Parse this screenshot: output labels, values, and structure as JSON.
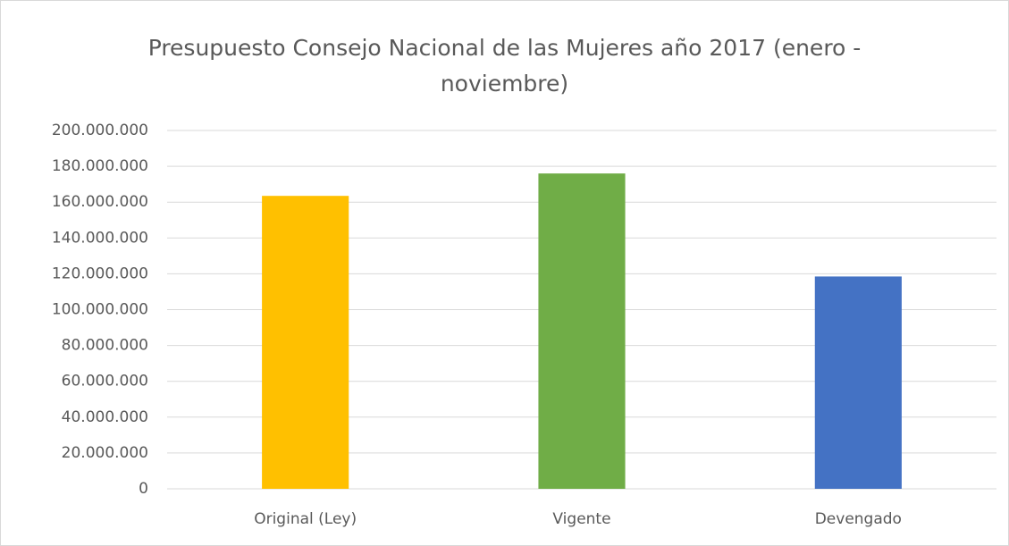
{
  "chart_data": {
    "type": "bar",
    "title": "Presupuesto Consejo Nacional de las Mujeres año 2017 (enero - noviembre)",
    "categories": [
      "Original (Ley)",
      "Vigente",
      "Devengado"
    ],
    "values": [
      163500000,
      176000000,
      118500000
    ],
    "colors": [
      "#ffc000",
      "#70ad47",
      "#4472c4"
    ],
    "ylim": [
      0,
      200000000
    ],
    "yticks": [
      0,
      {
        "value": 20000000,
        "label": "20.000.000"
      },
      {
        "value": 40000000,
        "label": "40.000.000"
      },
      {
        "value": 60000000,
        "label": "60.000.000"
      },
      {
        "value": 80000000,
        "label": "80.000.000"
      },
      {
        "value": 100000000,
        "label": "100.000.000"
      },
      {
        "value": 120000000,
        "label": "120.000.000"
      },
      {
        "value": 140000000,
        "label": "140.000.000"
      },
      {
        "value": 160000000,
        "label": "160.000.000"
      },
      {
        "value": 180000000,
        "label": "180.000.000"
      },
      {
        "value": 200000000,
        "label": "200.000.000"
      }
    ],
    "grid": true
  }
}
